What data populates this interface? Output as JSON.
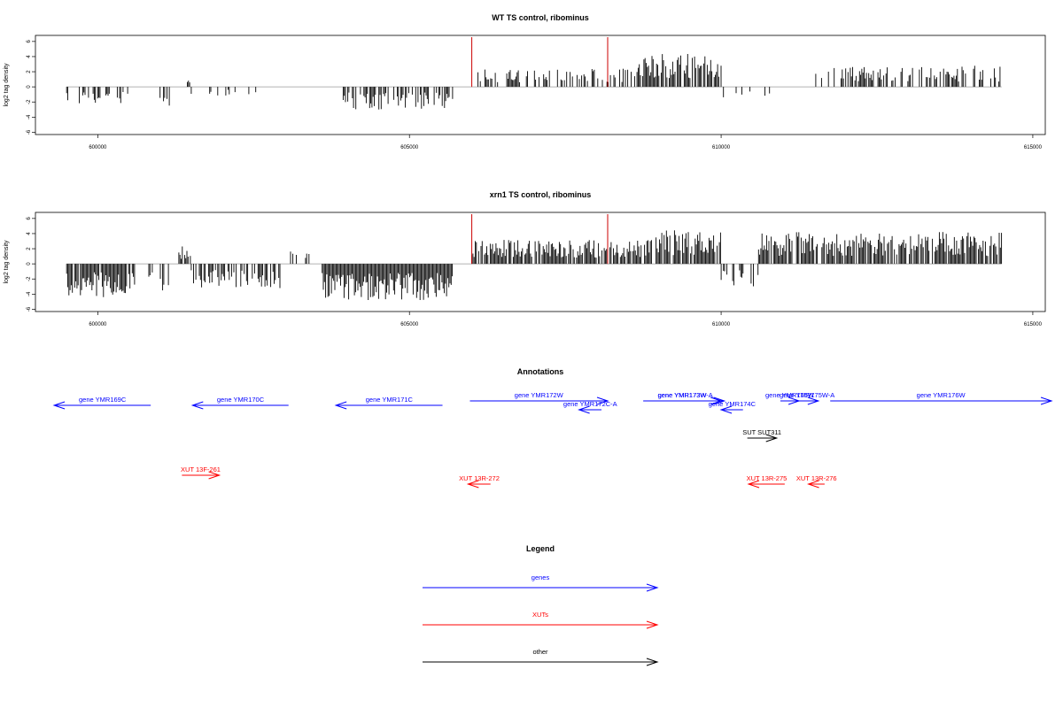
{
  "colors": {
    "genes": "#0000ff",
    "xuts": "#ff0000",
    "other": "#000000",
    "baseline": "#999999",
    "marker": "#cc0000"
  },
  "chart_data": [
    {
      "type": "bar",
      "title": "WT TS control, ribominus",
      "ylabel": "log2 tag density",
      "xlim": [
        599000,
        615200
      ],
      "ylim": [
        -6.3,
        6.8
      ],
      "xticks": [
        600000,
        605000,
        610000,
        615000
      ],
      "yticks": [
        6,
        4,
        2,
        0,
        -2,
        -4,
        -6
      ],
      "markers_x": [
        606000,
        608180
      ],
      "segments": [
        {
          "start": 599500,
          "end": 600500,
          "dir": -1,
          "amp": 2.3,
          "density": 0.45
        },
        {
          "start": 601000,
          "end": 601150,
          "dir": -1,
          "amp": 2.8,
          "density": 0.6
        },
        {
          "start": 601400,
          "end": 601500,
          "dir": 1,
          "amp": 2.0,
          "density": 0.6
        },
        {
          "start": 601500,
          "end": 602600,
          "dir": -1,
          "amp": 1.2,
          "density": 0.25
        },
        {
          "start": 603900,
          "end": 605700,
          "dir": -1,
          "amp": 3.0,
          "density": 0.6
        },
        {
          "start": 606100,
          "end": 608650,
          "dir": 1,
          "amp": 2.4,
          "density": 0.35
        },
        {
          "start": 608650,
          "end": 610000,
          "dir": 1,
          "amp": 4.5,
          "density": 0.8
        },
        {
          "start": 610000,
          "end": 610800,
          "dir": -1,
          "amp": 1.5,
          "density": 0.15
        },
        {
          "start": 611500,
          "end": 614500,
          "dir": 1,
          "amp": 2.8,
          "density": 0.55
        }
      ]
    },
    {
      "type": "bar",
      "title": "xrn1 TS control, ribominus",
      "ylabel": "log2 tag density",
      "xlim": [
        599000,
        615200
      ],
      "ylim": [
        -6.3,
        6.8
      ],
      "xticks": [
        600000,
        605000,
        610000,
        615000
      ],
      "yticks": [
        6,
        4,
        2,
        0,
        -2,
        -4,
        -6
      ],
      "markers_x": [
        606000,
        608180
      ],
      "segments": [
        {
          "start": 599500,
          "end": 600600,
          "dir": -1,
          "amp": 4.5,
          "density": 0.9
        },
        {
          "start": 600800,
          "end": 601200,
          "dir": -1,
          "amp": 3.5,
          "density": 0.6
        },
        {
          "start": 601300,
          "end": 601500,
          "dir": 1,
          "amp": 2.5,
          "density": 0.8
        },
        {
          "start": 601500,
          "end": 603000,
          "dir": -1,
          "amp": 3.2,
          "density": 0.55
        },
        {
          "start": 603000,
          "end": 603400,
          "dir": 1,
          "amp": 2.0,
          "density": 0.3
        },
        {
          "start": 603600,
          "end": 605700,
          "dir": -1,
          "amp": 4.8,
          "density": 1.0
        },
        {
          "start": 606000,
          "end": 608900,
          "dir": 1,
          "amp": 3.2,
          "density": 0.85
        },
        {
          "start": 608900,
          "end": 610000,
          "dir": 1,
          "amp": 4.5,
          "density": 0.9
        },
        {
          "start": 610000,
          "end": 610600,
          "dir": -1,
          "amp": 3.2,
          "density": 0.6
        },
        {
          "start": 610600,
          "end": 614500,
          "dir": 1,
          "amp": 4.2,
          "density": 0.85
        }
      ]
    }
  ],
  "annotations": {
    "title": "Annotations",
    "genes": [
      {
        "label": "gene YMR169C",
        "start": 599300,
        "end": 600850,
        "dir": -1,
        "row": 1
      },
      {
        "label": "gene YMR170C",
        "start": 601520,
        "end": 603060,
        "dir": -1,
        "row": 1
      },
      {
        "label": "gene YMR171C",
        "start": 603820,
        "end": 605530,
        "dir": -1,
        "row": 1
      },
      {
        "label": "gene YMR172W",
        "start": 605970,
        "end": 608180,
        "dir": 1,
        "row": 0
      },
      {
        "label": "gene YMR172C-A",
        "start": 607720,
        "end": 608080,
        "dir": -1,
        "row": 2
      },
      {
        "label": "gene YMR173W",
        "start": 608750,
        "end": 610000,
        "dir": 1,
        "row": 0
      },
      {
        "label": "gene YMR173W-A",
        "start": 608800,
        "end": 610050,
        "dir": 1,
        "row": 0
      },
      {
        "label": "gene YMR174C",
        "start": 610000,
        "end": 610350,
        "dir": -1,
        "row": 2
      },
      {
        "label": "gene YMR175W",
        "start": 610950,
        "end": 611250,
        "dir": 1,
        "row": 0
      },
      {
        "label": "gene YMR175W-A",
        "start": 611200,
        "end": 611560,
        "dir": 1,
        "row": 0
      },
      {
        "label": "gene YMR176W",
        "start": 611750,
        "end": 615300,
        "dir": 1,
        "row": 0
      }
    ],
    "other": [
      {
        "label": "SUT SUT311",
        "start": 610420,
        "end": 610890,
        "dir": 1,
        "row": 0
      }
    ],
    "xuts": [
      {
        "label": "XUT 13F-261",
        "start": 601350,
        "end": 601950,
        "dir": 1,
        "row": 0
      },
      {
        "label": "XUT 13R-272",
        "start": 605940,
        "end": 606300,
        "dir": -1,
        "row": 1
      },
      {
        "label": "XUT 13R-275",
        "start": 610440,
        "end": 611020,
        "dir": -1,
        "row": 1
      },
      {
        "label": "XUT 13R-276",
        "start": 611400,
        "end": 611660,
        "dir": -1,
        "row": 1
      }
    ]
  },
  "legend": {
    "title": "Legend",
    "items": [
      {
        "label": "genes",
        "color_key": "genes"
      },
      {
        "label": "XUTs",
        "color_key": "xuts"
      },
      {
        "label": "other",
        "color_key": "other"
      }
    ]
  }
}
